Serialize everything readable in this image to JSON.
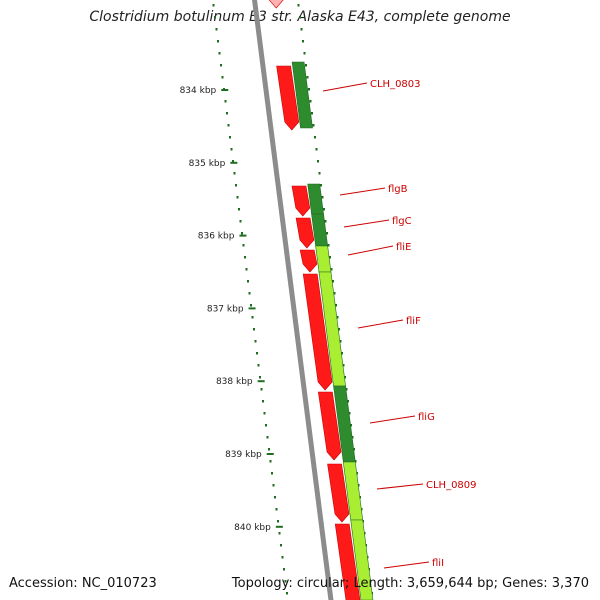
{
  "title": "Clostridium botulinum E3 str. Alaska E43, complete genome",
  "footer": {
    "accession": "Accession: NC_010723",
    "summary": "Topology: circular; Length: 3,659,644 bp; Genes: 3,370"
  },
  "colors": {
    "background": "#ffffff",
    "backbone": "#8c8c8c",
    "cds_reverse": "#ff1a1a",
    "cds_forward_dark": "#2e8b2e",
    "cds_forward_light": "#aaee33",
    "gene_label": "#cc0000",
    "tick": "#1f6e1f",
    "label_line": "#cc0000"
  },
  "ruler": {
    "unit": "kbp",
    "ticks": [
      {
        "kbp": 834,
        "label": "834 kbp"
      },
      {
        "kbp": 835,
        "label": "835 kbp"
      },
      {
        "kbp": 836,
        "label": "836 kbp"
      },
      {
        "kbp": 837,
        "label": "837 kbp"
      },
      {
        "kbp": 838,
        "label": "838 kbp"
      },
      {
        "kbp": 839,
        "label": "839 kbp"
      },
      {
        "kbp": 840,
        "label": "840 kbp"
      }
    ]
  },
  "genes": [
    {
      "name": "CLH_0803"
    },
    {
      "name": "flgB"
    },
    {
      "name": "flgC"
    },
    {
      "name": "fliE"
    },
    {
      "name": "fliF"
    },
    {
      "name": "fliG"
    },
    {
      "name": "CLH_0809"
    },
    {
      "name": "fliI"
    }
  ]
}
